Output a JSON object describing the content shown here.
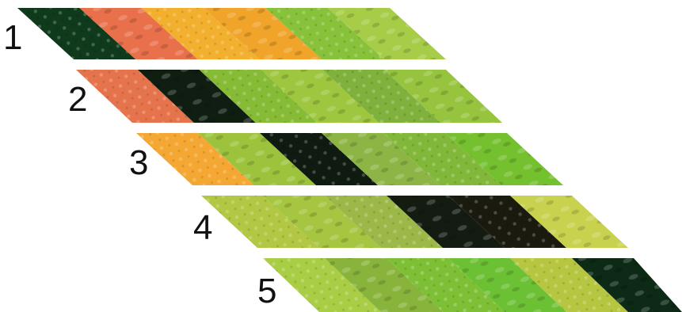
{
  "rows": [
    {
      "label": "1",
      "fabrics": [
        "#0f3a1c",
        "#e8704a",
        "#f2b02e",
        "#f0a42a",
        "#88c13a",
        "#a6cc48"
      ]
    },
    {
      "label": "2",
      "fabrics": [
        "#e5744c",
        "#101e12",
        "#86bb36",
        "#9ec63e",
        "#7fb13c",
        "#96c43e"
      ]
    },
    {
      "label": "3",
      "fabrics": [
        "#f4a833",
        "#9dc33d",
        "#0f1a10",
        "#8cb545",
        "#82b83a",
        "#74c02e"
      ]
    },
    {
      "label": "4",
      "fabrics": [
        "#b2c743",
        "#a6c540",
        "#9cb848",
        "#141c12",
        "#1a1a0e",
        "#c8d24e"
      ]
    },
    {
      "label": "5",
      "fabrics": [
        "#a9cd45",
        "#88b43c",
        "#7dc036",
        "#6cc034",
        "#b6c640",
        "#0c2a16"
      ]
    }
  ]
}
